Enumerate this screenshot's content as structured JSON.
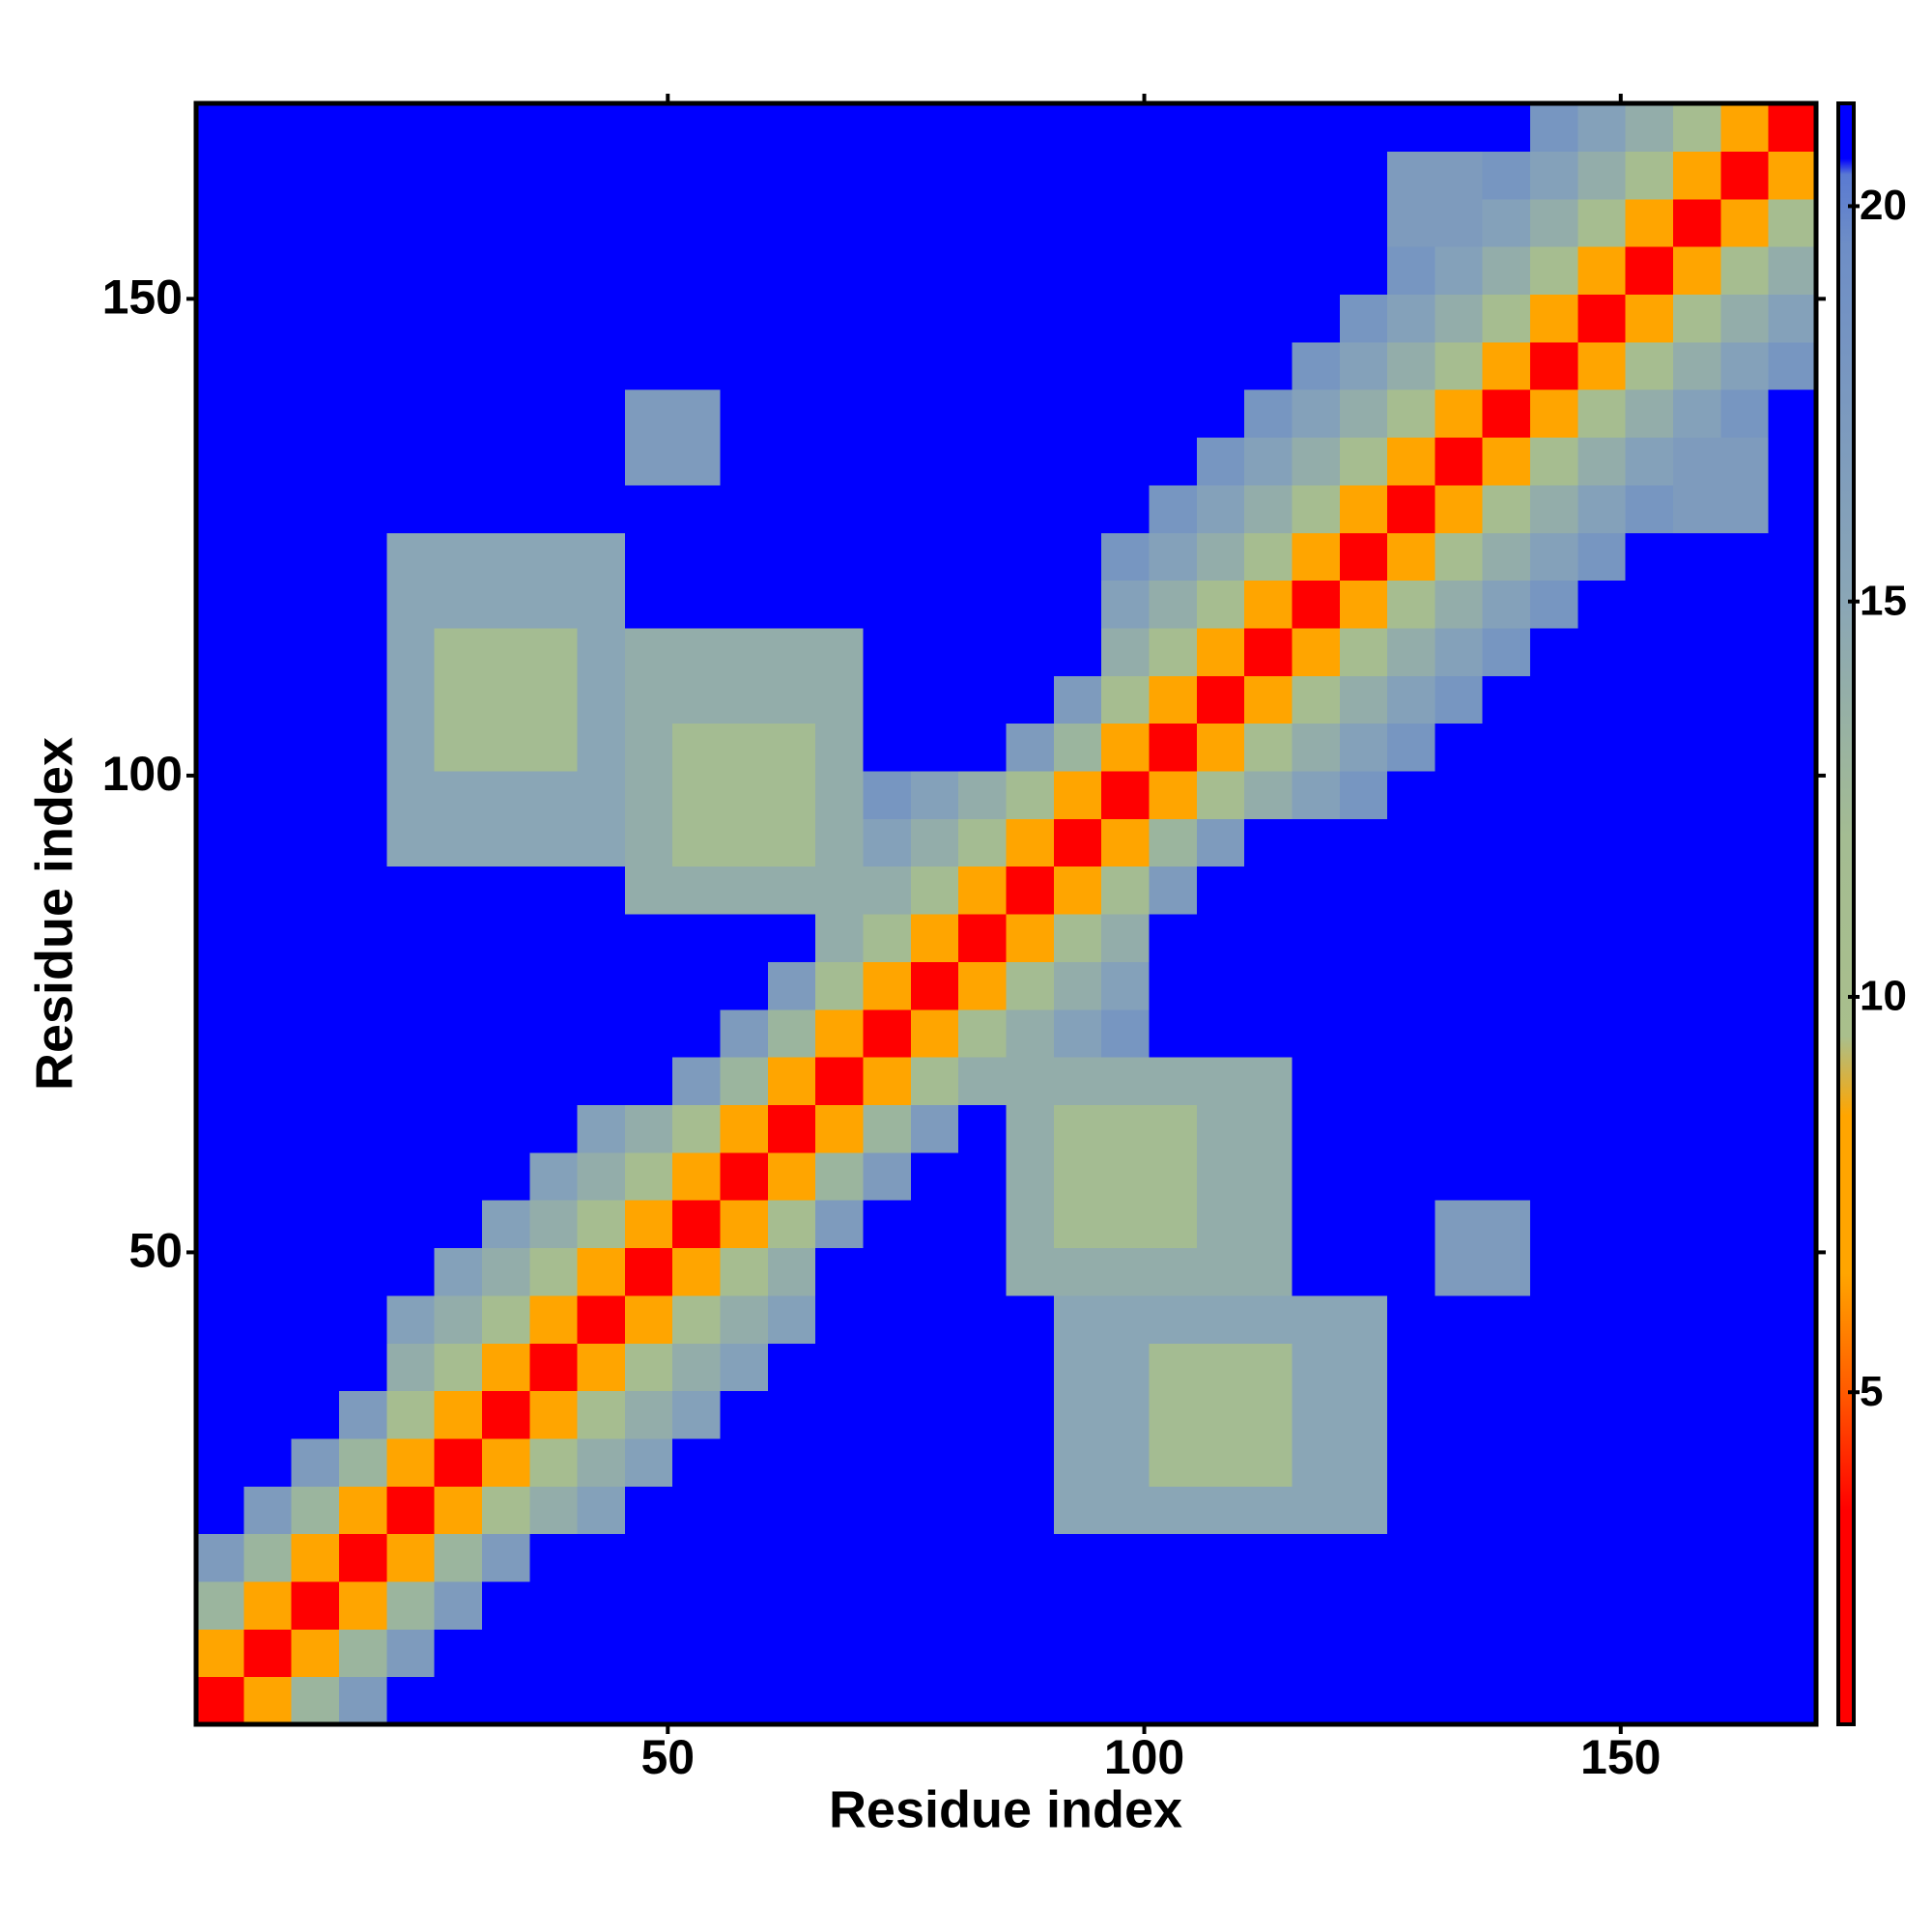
{
  "chart_data": {
    "type": "heatmap",
    "xlabel": "Residue index",
    "ylabel": "Residue index",
    "xlim": [
      0.5,
      170.5
    ],
    "ylim": [
      0.5,
      170.5
    ],
    "xticks": [
      50,
      100,
      150
    ],
    "yticks": [
      50,
      100,
      150
    ],
    "x_bins": [
      0.5,
      5.5,
      10.5,
      15.5,
      20.5,
      25.5,
      30.5,
      35.5,
      40.5,
      45.5,
      50.5,
      55.5,
      60.5,
      65.5,
      70.5,
      75.5,
      80.5,
      85.5,
      90.5,
      95.5,
      100.5,
      105.5,
      110.5,
      115.5,
      120.5,
      125.5,
      130.5,
      135.5,
      140.5,
      145.5,
      150.5,
      155.5,
      160.5,
      165.5,
      170.5
    ],
    "y_bins": [
      0.5,
      5.5,
      10.5,
      15.5,
      20.5,
      25.5,
      30.5,
      35.5,
      40.5,
      45.5,
      50.5,
      55.5,
      60.5,
      65.5,
      70.5,
      75.5,
      80.5,
      85.5,
      90.5,
      95.5,
      100.5,
      105.5,
      110.5,
      115.5,
      120.5,
      125.5,
      130.5,
      135.5,
      140.5,
      145.5,
      150.5,
      155.5,
      160.5,
      165.5,
      170.5
    ],
    "values": [
      [
        3,
        8,
        13,
        17,
        21,
        21,
        21,
        21,
        21,
        21,
        21,
        21,
        21,
        21,
        21,
        21,
        21,
        21,
        21,
        21,
        21,
        21,
        21,
        21,
        21,
        21,
        21,
        21,
        21,
        21,
        21,
        21,
        21,
        21
      ],
      [
        8,
        3,
        8,
        13,
        17,
        21,
        21,
        21,
        21,
        21,
        21,
        21,
        21,
        21,
        21,
        21,
        21,
        21,
        21,
        21,
        21,
        21,
        21,
        21,
        21,
        21,
        21,
        21,
        21,
        21,
        21,
        21,
        21,
        21
      ],
      [
        13,
        8,
        3,
        8,
        13,
        17,
        21,
        21,
        21,
        21,
        21,
        21,
        21,
        21,
        21,
        21,
        21,
        21,
        21,
        21,
        21,
        21,
        21,
        21,
        21,
        21,
        21,
        21,
        21,
        21,
        21,
        21,
        21,
        21
      ],
      [
        17,
        13,
        8,
        3,
        8,
        13,
        17,
        21,
        21,
        21,
        21,
        21,
        21,
        21,
        21,
        21,
        21,
        21,
        21,
        21,
        21,
        21,
        21,
        21,
        21,
        21,
        21,
        21,
        21,
        21,
        21,
        21,
        21,
        21
      ],
      [
        21,
        17,
        13,
        8,
        3,
        8,
        11,
        14,
        16,
        21,
        21,
        21,
        21,
        21,
        21,
        21,
        21,
        21,
        15,
        15,
        15,
        15,
        15,
        15,
        15,
        21,
        21,
        21,
        21,
        21,
        21,
        21,
        21,
        21
      ],
      [
        21,
        21,
        17,
        13,
        8,
        3,
        8,
        11,
        14,
        16,
        21,
        21,
        21,
        21,
        21,
        21,
        21,
        21,
        15,
        15,
        12,
        12,
        12,
        15,
        15,
        21,
        21,
        21,
        21,
        21,
        21,
        21,
        21,
        21
      ],
      [
        21,
        21,
        21,
        17,
        11,
        8,
        3,
        8,
        11,
        14,
        16,
        21,
        21,
        21,
        21,
        21,
        21,
        21,
        15,
        15,
        12,
        12,
        12,
        15,
        15,
        21,
        21,
        21,
        21,
        21,
        21,
        21,
        21,
        21
      ],
      [
        21,
        21,
        21,
        21,
        14,
        11,
        8,
        3,
        8,
        11,
        14,
        16,
        21,
        21,
        21,
        21,
        21,
        21,
        15,
        15,
        12,
        12,
        12,
        15,
        15,
        21,
        21,
        21,
        21,
        21,
        21,
        21,
        21,
        21
      ],
      [
        21,
        21,
        21,
        21,
        16,
        14,
        11,
        8,
        3,
        8,
        11,
        14,
        16,
        21,
        21,
        21,
        21,
        21,
        15,
        15,
        15,
        15,
        15,
        15,
        15,
        21,
        21,
        21,
        21,
        21,
        21,
        21,
        21,
        21
      ],
      [
        21,
        21,
        21,
        21,
        21,
        16,
        14,
        11,
        8,
        3,
        8,
        11,
        14,
        21,
        21,
        21,
        21,
        14,
        14,
        14,
        14,
        14,
        14,
        21,
        21,
        21,
        17,
        17,
        21,
        21,
        21,
        21,
        21,
        21
      ],
      [
        21,
        21,
        21,
        21,
        21,
        21,
        16,
        14,
        11,
        8,
        3,
        8,
        11,
        17,
        21,
        21,
        21,
        14,
        12,
        12,
        12,
        14,
        14,
        21,
        21,
        21,
        17,
        17,
        21,
        21,
        21,
        21,
        21,
        21
      ],
      [
        21,
        21,
        21,
        21,
        21,
        21,
        21,
        16,
        14,
        11,
        8,
        3,
        8,
        13,
        17,
        21,
        21,
        14,
        12,
        12,
        12,
        14,
        14,
        21,
        21,
        21,
        21,
        21,
        21,
        21,
        21,
        21,
        21,
        21
      ],
      [
        21,
        21,
        21,
        21,
        21,
        21,
        21,
        21,
        16,
        14,
        11,
        8,
        3,
        8,
        13,
        17,
        21,
        14,
        12,
        12,
        12,
        14,
        14,
        21,
        21,
        21,
        21,
        21,
        21,
        21,
        21,
        21,
        21,
        21
      ],
      [
        21,
        21,
        21,
        21,
        21,
        21,
        21,
        21,
        21,
        21,
        17,
        13,
        8,
        3,
        8,
        12,
        14,
        14,
        14,
        14,
        14,
        14,
        14,
        21,
        21,
        21,
        21,
        21,
        21,
        21,
        21,
        21,
        21,
        21
      ],
      [
        21,
        21,
        21,
        21,
        21,
        21,
        21,
        21,
        21,
        21,
        21,
        17,
        13,
        8,
        3,
        8,
        12,
        14,
        16,
        18,
        21,
        21,
        21,
        21,
        21,
        21,
        21,
        21,
        21,
        21,
        21,
        21,
        21,
        21
      ],
      [
        21,
        21,
        21,
        21,
        21,
        21,
        21,
        21,
        21,
        21,
        21,
        21,
        17,
        12,
        8,
        3,
        8,
        12,
        14,
        16,
        21,
        21,
        21,
        21,
        21,
        21,
        21,
        21,
        21,
        21,
        21,
        21,
        21,
        21
      ],
      [
        21,
        21,
        21,
        21,
        21,
        21,
        21,
        21,
        21,
        21,
        21,
        21,
        21,
        14,
        12,
        8,
        3,
        8,
        12,
        14,
        21,
        21,
        21,
        21,
        21,
        21,
        21,
        21,
        21,
        21,
        21,
        21,
        21,
        21
      ],
      [
        21,
        21,
        21,
        21,
        21,
        21,
        21,
        21,
        21,
        14,
        14,
        14,
        14,
        14,
        14,
        12,
        8,
        3,
        8,
        12,
        17,
        21,
        21,
        21,
        21,
        21,
        21,
        21,
        21,
        21,
        21,
        21,
        21,
        21
      ],
      [
        21,
        21,
        21,
        21,
        15,
        15,
        15,
        15,
        15,
        14,
        12,
        12,
        12,
        14,
        16,
        14,
        12,
        8,
        3,
        8,
        13,
        17,
        21,
        21,
        21,
        21,
        21,
        21,
        21,
        21,
        21,
        21,
        21,
        21
      ],
      [
        21,
        21,
        21,
        21,
        15,
        15,
        15,
        15,
        15,
        14,
        12,
        12,
        12,
        14,
        18,
        16,
        14,
        12,
        8,
        3,
        8,
        11,
        14,
        16,
        18,
        21,
        21,
        21,
        21,
        21,
        21,
        21,
        21,
        21
      ],
      [
        21,
        21,
        21,
        21,
        15,
        12,
        12,
        12,
        15,
        14,
        12,
        12,
        12,
        14,
        21,
        21,
        21,
        17,
        13,
        8,
        3,
        8,
        11,
        14,
        16,
        18,
        21,
        21,
        21,
        21,
        21,
        21,
        21,
        21
      ],
      [
        21,
        21,
        21,
        21,
        15,
        12,
        12,
        12,
        15,
        14,
        14,
        14,
        14,
        14,
        21,
        21,
        21,
        21,
        17,
        11,
        8,
        3,
        8,
        11,
        14,
        16,
        18,
        21,
        21,
        21,
        21,
        21,
        21,
        21
      ],
      [
        21,
        21,
        21,
        21,
        15,
        12,
        12,
        12,
        15,
        14,
        14,
        14,
        14,
        14,
        21,
        21,
        21,
        21,
        21,
        14,
        11,
        8,
        3,
        8,
        11,
        14,
        16,
        18,
        21,
        21,
        21,
        21,
        21,
        21
      ],
      [
        21,
        21,
        21,
        21,
        15,
        15,
        15,
        15,
        15,
        21,
        21,
        21,
        21,
        21,
        21,
        21,
        21,
        21,
        21,
        16,
        14,
        11,
        8,
        3,
        8,
        11,
        14,
        16,
        18,
        21,
        21,
        21,
        21,
        21
      ],
      [
        21,
        21,
        21,
        21,
        15,
        15,
        15,
        15,
        15,
        21,
        21,
        21,
        21,
        21,
        21,
        21,
        21,
        21,
        21,
        18,
        16,
        14,
        11,
        8,
        3,
        8,
        11,
        14,
        16,
        18,
        21,
        21,
        21,
        21
      ],
      [
        21,
        21,
        21,
        21,
        21,
        21,
        21,
        21,
        21,
        21,
        21,
        21,
        21,
        21,
        21,
        21,
        21,
        21,
        21,
        21,
        18,
        16,
        14,
        11,
        8,
        3,
        8,
        11,
        14,
        16,
        18,
        17,
        17,
        21
      ],
      [
        21,
        21,
        21,
        21,
        21,
        21,
        21,
        21,
        21,
        17,
        17,
        21,
        21,
        21,
        21,
        21,
        21,
        21,
        21,
        21,
        21,
        18,
        16,
        14,
        11,
        8,
        3,
        8,
        11,
        14,
        16,
        17,
        17,
        21
      ],
      [
        21,
        21,
        21,
        21,
        21,
        21,
        21,
        21,
        21,
        17,
        17,
        21,
        21,
        21,
        21,
        21,
        21,
        21,
        21,
        21,
        21,
        21,
        18,
        16,
        14,
        11,
        8,
        3,
        8,
        11,
        14,
        16,
        18,
        21
      ],
      [
        21,
        21,
        21,
        21,
        21,
        21,
        21,
        21,
        21,
        21,
        21,
        21,
        21,
        21,
        21,
        21,
        21,
        21,
        21,
        21,
        21,
        21,
        21,
        18,
        16,
        14,
        11,
        8,
        3,
        8,
        11,
        14,
        16,
        18
      ],
      [
        21,
        21,
        21,
        21,
        21,
        21,
        21,
        21,
        21,
        21,
        21,
        21,
        21,
        21,
        21,
        21,
        21,
        21,
        21,
        21,
        21,
        21,
        21,
        21,
        18,
        16,
        14,
        11,
        8,
        3,
        8,
        11,
        14,
        16
      ],
      [
        21,
        21,
        21,
        21,
        21,
        21,
        21,
        21,
        21,
        21,
        21,
        21,
        21,
        21,
        21,
        21,
        21,
        21,
        21,
        21,
        21,
        21,
        21,
        21,
        21,
        18,
        16,
        14,
        11,
        8,
        3,
        8,
        11,
        14
      ],
      [
        21,
        21,
        21,
        21,
        21,
        21,
        21,
        21,
        21,
        21,
        21,
        21,
        21,
        21,
        21,
        21,
        21,
        21,
        21,
        21,
        21,
        21,
        21,
        21,
        21,
        17,
        17,
        16,
        14,
        11,
        8,
        3,
        8,
        11
      ],
      [
        21,
        21,
        21,
        21,
        21,
        21,
        21,
        21,
        21,
        21,
        21,
        21,
        21,
        21,
        21,
        21,
        21,
        21,
        21,
        21,
        21,
        21,
        21,
        21,
        21,
        17,
        17,
        18,
        16,
        14,
        11,
        8,
        3,
        8
      ],
      [
        21,
        21,
        21,
        21,
        21,
        21,
        21,
        21,
        21,
        21,
        21,
        21,
        21,
        21,
        21,
        21,
        21,
        21,
        21,
        21,
        21,
        21,
        21,
        21,
        21,
        21,
        21,
        21,
        18,
        16,
        14,
        11,
        8,
        3
      ]
    ],
    "colorbar": {
      "lim": [
        0.8,
        21.3
      ],
      "ticks": [
        5,
        10,
        15,
        20
      ],
      "stops": [
        {
          "value": 0.8,
          "color": "#ff0000"
        },
        {
          "value": 3.5,
          "color": "#ff0000"
        },
        {
          "value": 5,
          "color": "#ff5a00"
        },
        {
          "value": 6.5,
          "color": "#ffa500"
        },
        {
          "value": 8.5,
          "color": "#ffa500"
        },
        {
          "value": 9.5,
          "color": "#a9bf8c"
        },
        {
          "value": 12,
          "color": "#a4bc92"
        },
        {
          "value": 15,
          "color": "#8aa6b6"
        },
        {
          "value": 19.5,
          "color": "#6e8ec6"
        },
        {
          "value": 20.4,
          "color": "#5a7ad2"
        },
        {
          "value": 20.6,
          "color": "#0000ff"
        },
        {
          "value": 21.3,
          "color": "#0000ff"
        }
      ]
    }
  }
}
